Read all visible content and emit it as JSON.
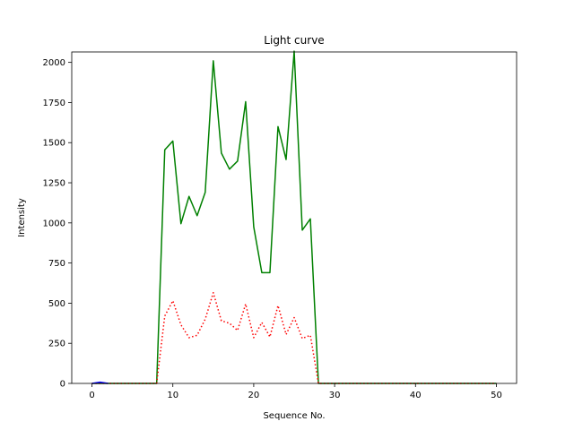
{
  "chart_data": {
    "type": "line",
    "title": "Light curve",
    "xlabel": "Sequence No.",
    "ylabel": "Intensity",
    "xlim": [
      -2.5,
      52.5
    ],
    "ylim": [
      0,
      2065
    ],
    "xticks": [
      0,
      10,
      20,
      30,
      40,
      50
    ],
    "yticks": [
      0,
      250,
      500,
      750,
      1000,
      1250,
      1500,
      1750,
      2000
    ],
    "grid": false,
    "series": [
      {
        "color": "#008000",
        "linestyle": "solid",
        "x": [
          0,
          1,
          2,
          3,
          4,
          5,
          6,
          7,
          8,
          9,
          10,
          11,
          12,
          13,
          14,
          15,
          16,
          17,
          18,
          19,
          20,
          21,
          22,
          23,
          24,
          25,
          26,
          27,
          28,
          29,
          30,
          31,
          32,
          33,
          34,
          35,
          36,
          37,
          38,
          39,
          40,
          41,
          42,
          43,
          44,
          45,
          46,
          47,
          48,
          49,
          50
        ],
        "y": [
          0,
          0,
          0,
          0,
          0,
          0,
          0,
          0,
          0,
          1455,
          1510,
          995,
          1165,
          1045,
          1190,
          2010,
          1435,
          1335,
          1385,
          1755,
          975,
          690,
          690,
          1600,
          1395,
          2070,
          955,
          1025,
          0,
          0,
          0,
          0,
          0,
          0,
          0,
          0,
          0,
          0,
          0,
          0,
          0,
          0,
          0,
          0,
          0,
          0,
          0,
          0,
          0,
          0,
          0
        ]
      },
      {
        "color": "#ff0000",
        "linestyle": "dotted",
        "x": [
          0,
          1,
          2,
          3,
          4,
          5,
          6,
          7,
          8,
          9,
          10,
          11,
          12,
          13,
          14,
          15,
          16,
          17,
          18,
          19,
          20,
          21,
          22,
          23,
          24,
          25,
          26,
          27,
          28,
          29,
          30,
          31,
          32,
          33,
          34,
          35,
          36,
          37,
          38,
          39,
          40,
          41,
          42,
          43,
          44,
          45,
          46,
          47,
          48,
          49,
          50
        ],
        "y": [
          0,
          0,
          0,
          0,
          0,
          0,
          0,
          0,
          0,
          420,
          515,
          365,
          285,
          300,
          400,
          565,
          390,
          375,
          330,
          495,
          285,
          380,
          290,
          485,
          305,
          410,
          280,
          300,
          0,
          0,
          0,
          0,
          0,
          0,
          0,
          0,
          0,
          0,
          0,
          0,
          0,
          0,
          0,
          0,
          0,
          0,
          0,
          0,
          0,
          0,
          0
        ]
      },
      {
        "color": "#0000ff",
        "linestyle": "solid",
        "x": [
          0,
          1,
          2
        ],
        "y": [
          0,
          8,
          0
        ]
      }
    ]
  }
}
